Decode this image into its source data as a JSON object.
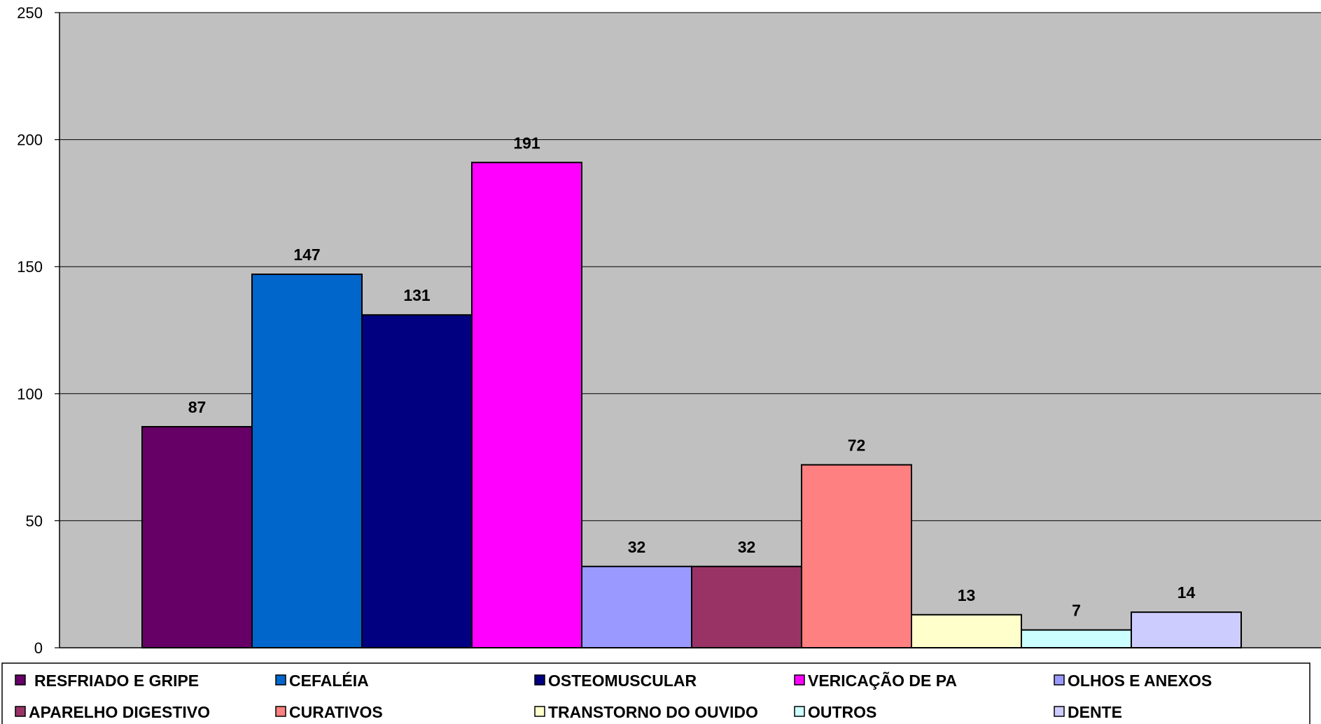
{
  "chart_data": {
    "type": "bar",
    "categories": [
      "RESFRIADO E GRIPE",
      "CEFALÉIA",
      "OSTEOMUSCULAR",
      "VERICAÇÃO DE PA",
      "OLHOS E ANEXOS",
      "APARELHO DIGESTIVO",
      "CURATIVOS",
      "TRANSTORNO DO OUVIDO",
      "OUTROS",
      "DENTE"
    ],
    "values": [
      87,
      147,
      131,
      191,
      32,
      32,
      72,
      13,
      7,
      14
    ],
    "colors": [
      "#660066",
      "#0066CC",
      "#000080",
      "#FF00FF",
      "#9999FF",
      "#993366",
      "#FF8080",
      "#FFFFCC",
      "#CCFFFF",
      "#CCCCFF"
    ],
    "ylim": [
      0,
      250
    ],
    "yticks": [
      0,
      50,
      100,
      150,
      200,
      250
    ],
    "grid": true,
    "plot_background": "#C0C0C0",
    "legend_position": "bottom",
    "legend_columns": 5
  }
}
